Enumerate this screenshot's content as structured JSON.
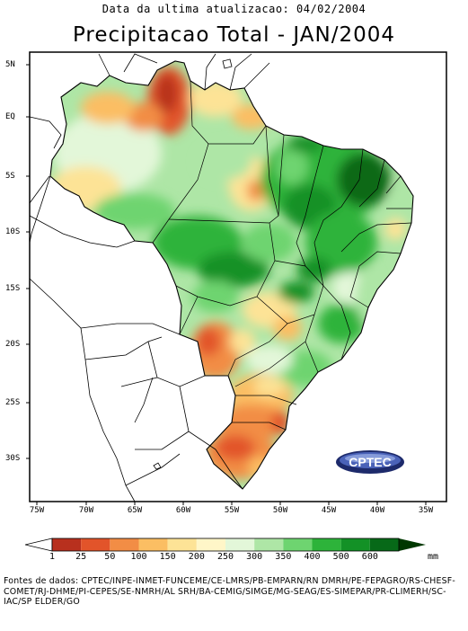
{
  "header": {
    "update_text": "Data da ultima atualizacao: 04/02/2004",
    "title": "Precipitacao Total - JAN/2004"
  },
  "map": {
    "lon_labels": [
      "75W",
      "70W",
      "65W",
      "60W",
      "55W",
      "50W",
      "45W",
      "40W",
      "35W"
    ],
    "lat_labels": [
      "5N",
      "EQ",
      "5S",
      "10S",
      "15S",
      "20S",
      "25S",
      "30S"
    ],
    "logo_text": "CPTEC"
  },
  "legend": {
    "values": [
      "1",
      "25",
      "50",
      "100",
      "150",
      "200",
      "250",
      "300",
      "350",
      "400",
      "500",
      "600"
    ],
    "unit": "mm",
    "colors": [
      "#ffffff",
      "#b8301e",
      "#e2542a",
      "#f28d45",
      "#fbbe63",
      "#fde396",
      "#fff6c8",
      "#e3f7d9",
      "#aee6a6",
      "#6ed470",
      "#2db33a",
      "#139126",
      "#076918",
      "#003800"
    ]
  },
  "sources": "Fontes de dados: CPTEC/INPE-INMET-FUNCEME/CE-LMRS/PB-EMPARN/RN DMRH/PE-FEPAGRO/RS-CHESF-COMET/RJ-DHME/PI-CEPES/SE-NMRH/AL SRH/BA-CEMIG/SIMGE/MG-SEAG/ES-SIMEPAR/PR-CLIMERH/SC-IAC/SP ELDER/GO"
}
